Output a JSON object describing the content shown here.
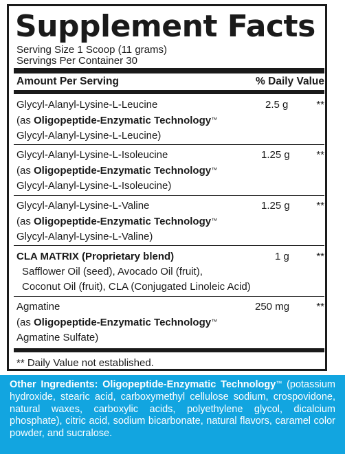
{
  "title": "Supplement Facts",
  "serving_size": "Serving Size 1 Scoop (11 grams)",
  "servings_per_container": "Servings Per Container 30",
  "header": {
    "amount": "Amount Per Serving",
    "dv": "% Daily Value"
  },
  "rows": [
    {
      "name": "Glycyl-Alanyl-Lysine-L-Leucine",
      "amount": "2.5 g",
      "dv": "**",
      "as_prefix": "(as ",
      "tech": "Oligopeptide-Enzymatic Technology",
      "tm": "™",
      "sub": "Glycyl-Alanyl-Lysine-L-Leucine)"
    },
    {
      "name": "Glycyl-Alanyl-Lysine-L-Isoleucine",
      "amount": "1.25 g",
      "dv": "**",
      "as_prefix": "(as ",
      "tech": "Oligopeptide-Enzymatic Technology",
      "tm": "™",
      "sub": "Glycyl-Alanyl-Lysine-L-Isoleucine)"
    },
    {
      "name": "Glycyl-Alanyl-Lysine-L-Valine",
      "amount": "1.25 g",
      "dv": "**",
      "as_prefix": "(as ",
      "tech": "Oligopeptide-Enzymatic Technology",
      "tm": "™",
      "sub": "Glycyl-Alanyl-Lysine-L-Valine)"
    },
    {
      "name": "CLA MATRIX (Proprietary blend)",
      "amount": "1 g",
      "dv": "**",
      "line2": "Safflower Oil (seed), Avocado Oil (fruit),",
      "line3": "Coconut Oil (fruit), CLA (Conjugated Linoleic Acid)"
    },
    {
      "name": "Agmatine",
      "amount": "250 mg",
      "dv": "**",
      "as_prefix": "(as ",
      "tech": "Oligopeptide-Enzymatic Technology",
      "tm": "™",
      "sub": "Agmatine Sulfate)"
    }
  ],
  "footnote": "** Daily Value not established.",
  "other": {
    "label": "Other Ingredients: Oligopeptide-Enzymatic Technology",
    "tm": "™",
    "text": " (potassium hydroxide, stearic acid, carboxymethyl cellulose sodium, crospovidone, natural waxes, carboxylic acids, polyethylene glycol, dicalcium phosphate), citric acid, sodium bicarbonate, natural flavors, caramel color powder, and sucralose."
  },
  "colors": {
    "ink": "#1a1a1a",
    "other_bg": "#12a5e0",
    "other_text": "#ffffff"
  }
}
